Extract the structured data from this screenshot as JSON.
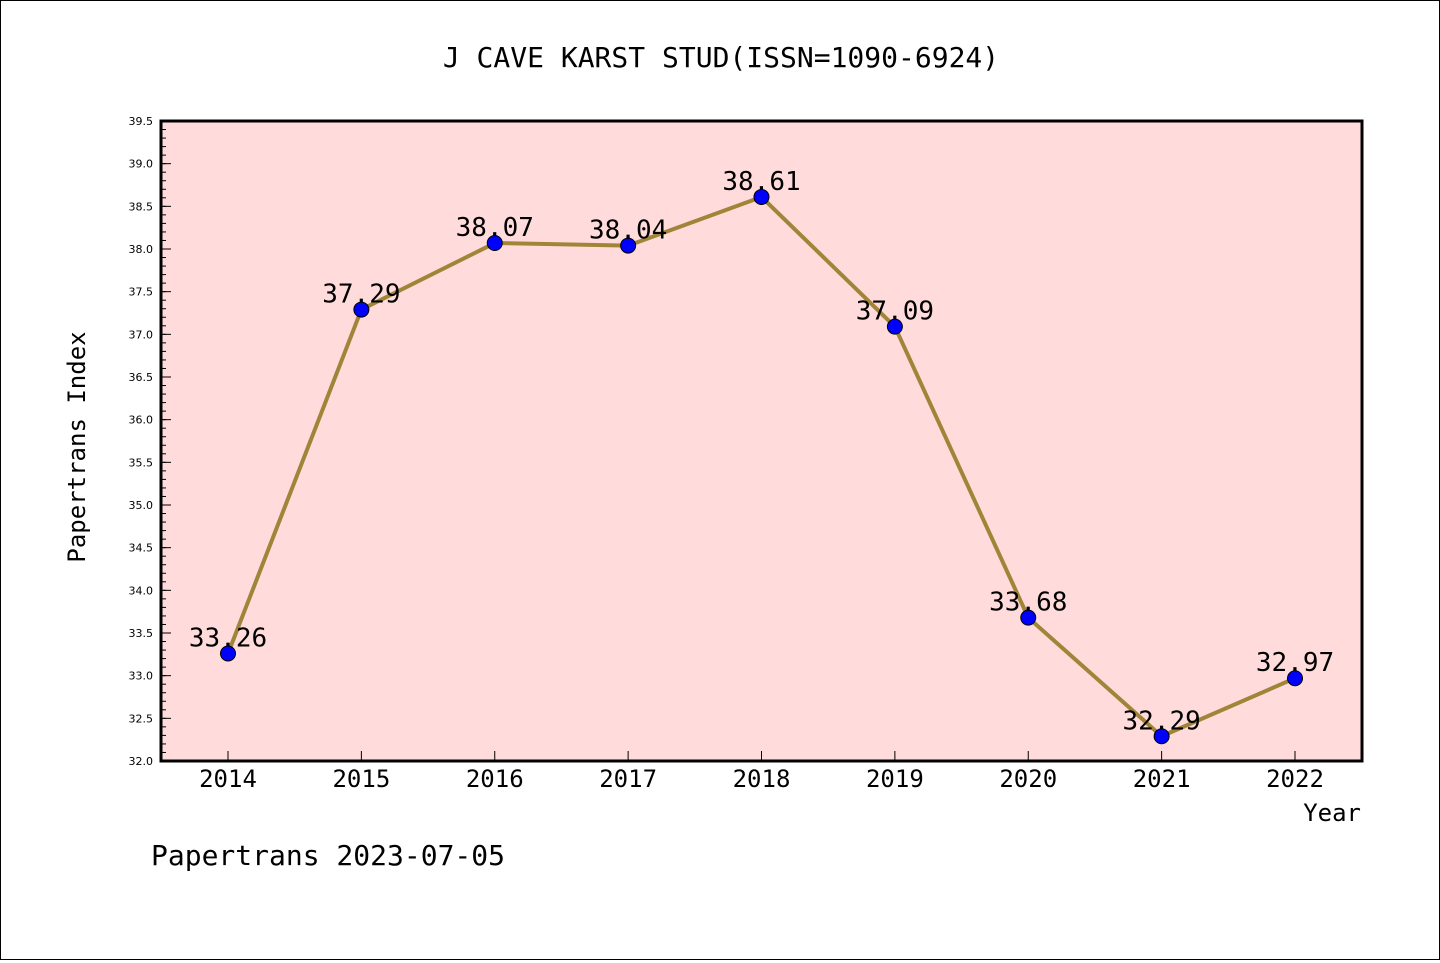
{
  "chart_data": {
    "type": "line",
    "title": "J CAVE KARST STUD(ISSN=1090-6924)",
    "xlabel": "Year",
    "ylabel": "Papertrans Index",
    "categories": [
      "2014",
      "2015",
      "2016",
      "2017",
      "2018",
      "2019",
      "2020",
      "2021",
      "2022"
    ],
    "series": [
      {
        "values": [
          33.26,
          37.29,
          38.07,
          38.04,
          38.61,
          37.09,
          33.68,
          32.29,
          32.97
        ],
        "labels": [
          "33.26",
          "37.29",
          "38.07",
          "38.04",
          "38.61",
          "37.09",
          "33.68",
          "32.29",
          "32.97"
        ],
        "line_color": "#a08538",
        "marker_color": "#0000ff"
      }
    ],
    "ylim": [
      32.0,
      39.5
    ],
    "yticks": [
      "32.0",
      "32.5",
      "33.0",
      "33.5",
      "34.0",
      "34.5",
      "35.0",
      "35.5",
      "36.0",
      "36.5",
      "37.0",
      "37.5",
      "38.0",
      "38.5",
      "39.0",
      "39.5"
    ],
    "grid": false,
    "legend": "none",
    "plot_background": "#ffdcdb"
  },
  "footer": "Papertrans 2023-07-05"
}
